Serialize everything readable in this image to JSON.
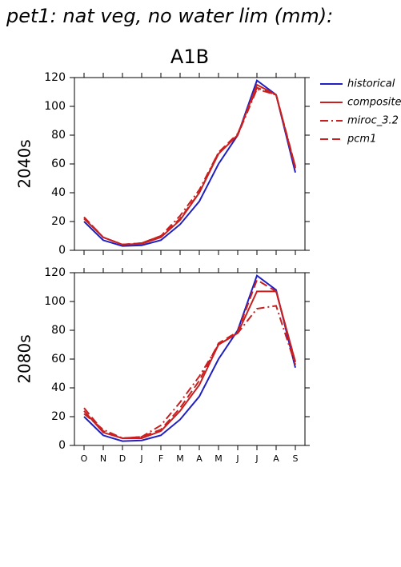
{
  "title": "pet1: nat veg, no water lim (mm):",
  "chart_data": [
    {
      "type": "line",
      "title": "A1B",
      "ylabel": "2040s",
      "legend": true,
      "categories": [
        null,
        null,
        null,
        null,
        null,
        null,
        null,
        null,
        null,
        null,
        null,
        null
      ],
      "ylim": [
        0,
        120
      ],
      "yticks": [
        0,
        20,
        40,
        60,
        80,
        100,
        120
      ],
      "series": [
        {
          "name": "historical",
          "color": "#2020c0",
          "dash": "solid",
          "values": [
            20,
            7,
            3,
            3.5,
            7,
            18,
            34,
            60,
            80,
            118,
            108,
            54
          ]
        },
        {
          "name": "composite",
          "color": "#c82020",
          "dash": "solid",
          "values": [
            22,
            9,
            4,
            4.5,
            9,
            21,
            40,
            67,
            80,
            115,
            108,
            57
          ]
        },
        {
          "name": "miroc_3.2",
          "color": "#c82020",
          "dash": "dashdot",
          "values": [
            23,
            9,
            4,
            5,
            10,
            24,
            42,
            68,
            80,
            112,
            108,
            58
          ]
        },
        {
          "name": "pcm1",
          "color": "#c82020",
          "dash": "dash",
          "values": [
            23,
            9,
            4,
            5,
            10,
            22,
            40,
            68,
            81,
            113,
            108,
            58
          ]
        }
      ]
    },
    {
      "type": "line",
      "ylabel": "2080s",
      "legend": false,
      "categories": [
        "O",
        "N",
        "D",
        "J",
        "F",
        "M",
        "A",
        "M",
        "J",
        "J",
        "A",
        "S"
      ],
      "ylim": [
        0,
        120
      ],
      "yticks": [
        0,
        20,
        40,
        60,
        80,
        100,
        120
      ],
      "series": [
        {
          "name": "historical",
          "color": "#2020c0",
          "dash": "solid",
          "values": [
            20,
            7,
            3,
            3.5,
            7,
            18,
            34,
            60,
            80,
            118,
            108,
            54
          ]
        },
        {
          "name": "composite",
          "color": "#c82020",
          "dash": "solid",
          "values": [
            24,
            9,
            5,
            5,
            10,
            24,
            42,
            70,
            78,
            107,
            107,
            58
          ]
        },
        {
          "name": "miroc_3.2",
          "color": "#c82020",
          "dash": "dashdot",
          "values": [
            22,
            11,
            5,
            6,
            14,
            30,
            48,
            70,
            78,
            95,
            97,
            56
          ]
        },
        {
          "name": "pcm1",
          "color": "#c82020",
          "dash": "dash",
          "values": [
            26,
            10,
            5,
            6,
            11,
            26,
            45,
            71,
            79,
            115,
            107,
            58
          ]
        }
      ]
    }
  ]
}
